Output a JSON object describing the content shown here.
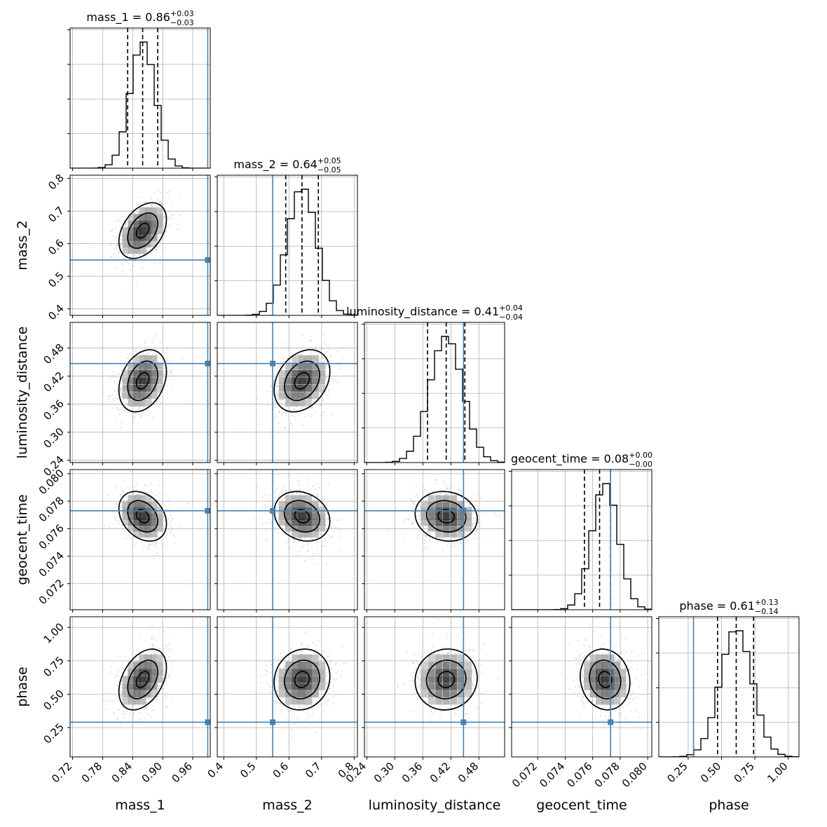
{
  "chart_data": {
    "type": "corner",
    "parameters": [
      "mass_1",
      "mass_2",
      "luminosity_distance",
      "geocent_time",
      "phase"
    ],
    "ranges": [
      [
        0.715,
        0.995
      ],
      [
        0.38,
        0.81
      ],
      [
        0.235,
        0.535
      ],
      [
        0.0701,
        0.0803
      ],
      [
        0.03,
        1.08
      ]
    ],
    "ticks": [
      [
        "0.72",
        "0.78",
        "0.84",
        "0.90",
        "0.96"
      ],
      [
        "0.4",
        "0.5",
        "0.6",
        "0.7",
        "0.8"
      ],
      [
        "0.24",
        "0.30",
        "0.36",
        "0.42",
        "0.48"
      ],
      [
        "0.072",
        "0.074",
        "0.076",
        "0.078",
        "0.080"
      ],
      [
        "0.25",
        "0.50",
        "0.75",
        "1.00"
      ]
    ],
    "truths": [
      0.99,
      0.55,
      0.447,
      0.0773,
      0.29
    ],
    "truth_color": "#4682b4",
    "means": [
      0.86,
      0.64,
      0.41,
      0.0769,
      0.61
    ],
    "sigmas": [
      0.025,
      0.045,
      0.035,
      0.00095,
      0.12
    ],
    "correlations": [
      [
        1,
        2,
        0.4
      ],
      [
        1,
        3,
        0.3
      ],
      [
        1,
        4,
        -0.3
      ],
      [
        1,
        5,
        0.4
      ],
      [
        2,
        3,
        0.3
      ],
      [
        2,
        4,
        -0.2
      ],
      [
        2,
        5,
        0.1
      ],
      [
        3,
        4,
        -0.1
      ],
      [
        3,
        5,
        0.05
      ],
      [
        4,
        5,
        -0.1
      ]
    ],
    "quantiles": [
      [
        0.83,
        0.86,
        0.89
      ],
      [
        0.59,
        0.64,
        0.69
      ],
      [
        0.37,
        0.41,
        0.45
      ],
      [
        0.0754,
        0.0765,
        0.0773
      ],
      [
        0.47,
        0.61,
        0.74
      ]
    ],
    "titles": [
      {
        "name": "mass_1",
        "value": "0.86",
        "plus": "+0.03",
        "minus": "−0.03"
      },
      {
        "name": "mass_2",
        "value": "0.64",
        "plus": "+0.05",
        "minus": "−0.05"
      },
      {
        "name": "luminosity_distance",
        "value": "0.41",
        "plus": "+0.04",
        "minus": "−0.04"
      },
      {
        "name": "geocent_time",
        "value": "0.08",
        "plus": "+0.00",
        "minus": "−0.00"
      },
      {
        "name": "phase",
        "value": "0.61",
        "plus": "+0.13",
        "minus": "−0.14"
      }
    ],
    "grid": true
  }
}
